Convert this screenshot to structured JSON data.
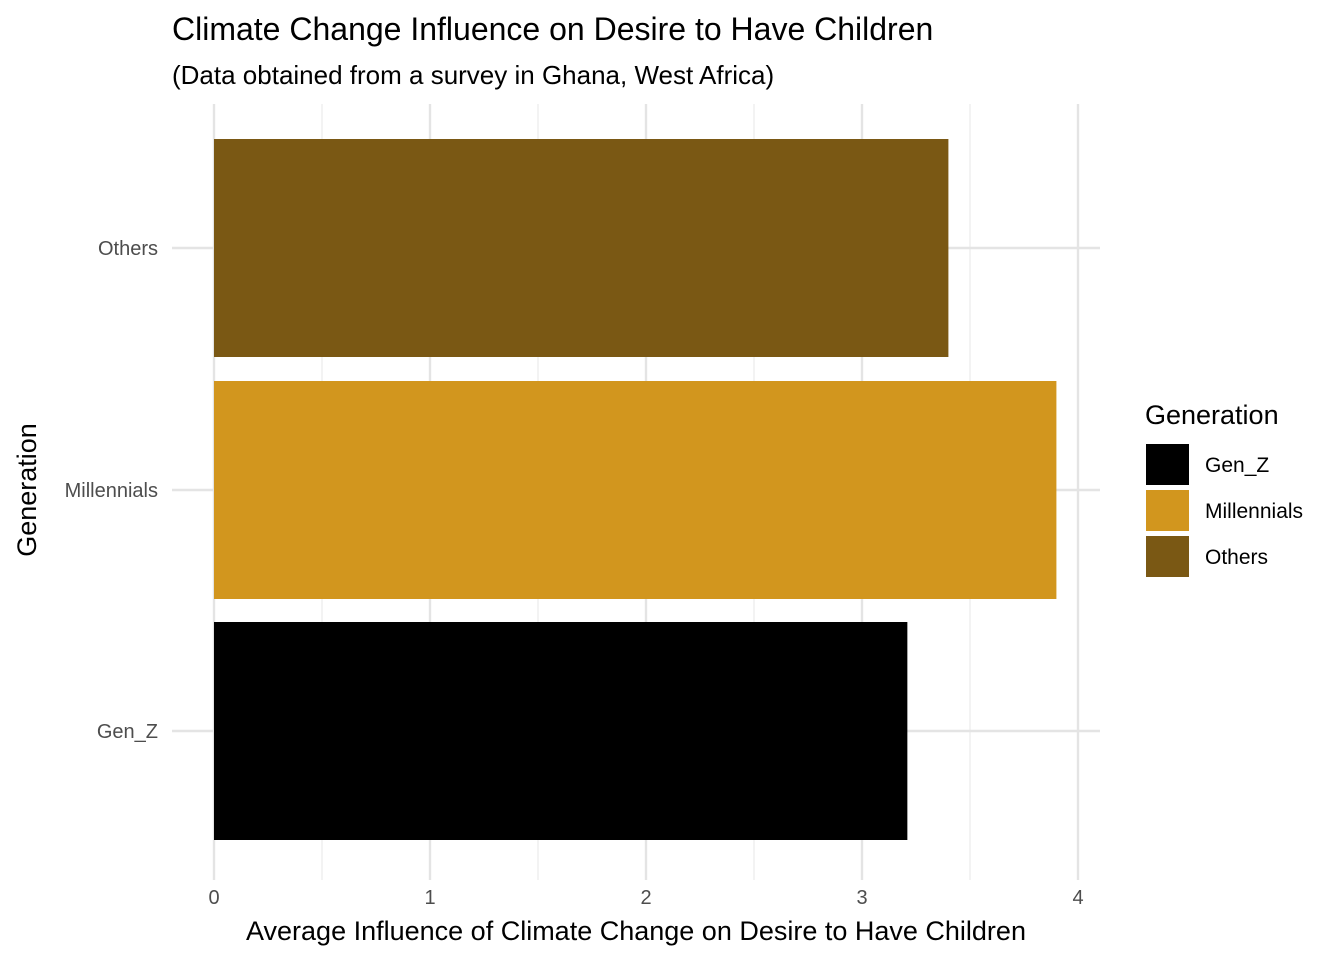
{
  "chart_data": {
    "type": "bar",
    "orientation": "horizontal",
    "title": "Climate Change Influence on Desire to Have Children",
    "subtitle": "(Data obtained from a survey in Ghana, West Africa)",
    "xlabel": "Average Influence of Climate Change on Desire to Have Children",
    "ylabel": "Generation",
    "categories": [
      "Gen_Z",
      "Millennials",
      "Others"
    ],
    "values": [
      3.21,
      3.9,
      3.4
    ],
    "xlim": [
      0,
      4
    ],
    "x_ticks": [
      "0",
      "1",
      "2",
      "3",
      "4"
    ],
    "grid": true,
    "legend": {
      "title": "Generation",
      "placement": "right",
      "entries": [
        "Gen_Z",
        "Millennials",
        "Others"
      ]
    },
    "colors": {
      "Gen_Z": "#000000",
      "Millennials": "#D2961E",
      "Others": "#7A5814"
    }
  }
}
